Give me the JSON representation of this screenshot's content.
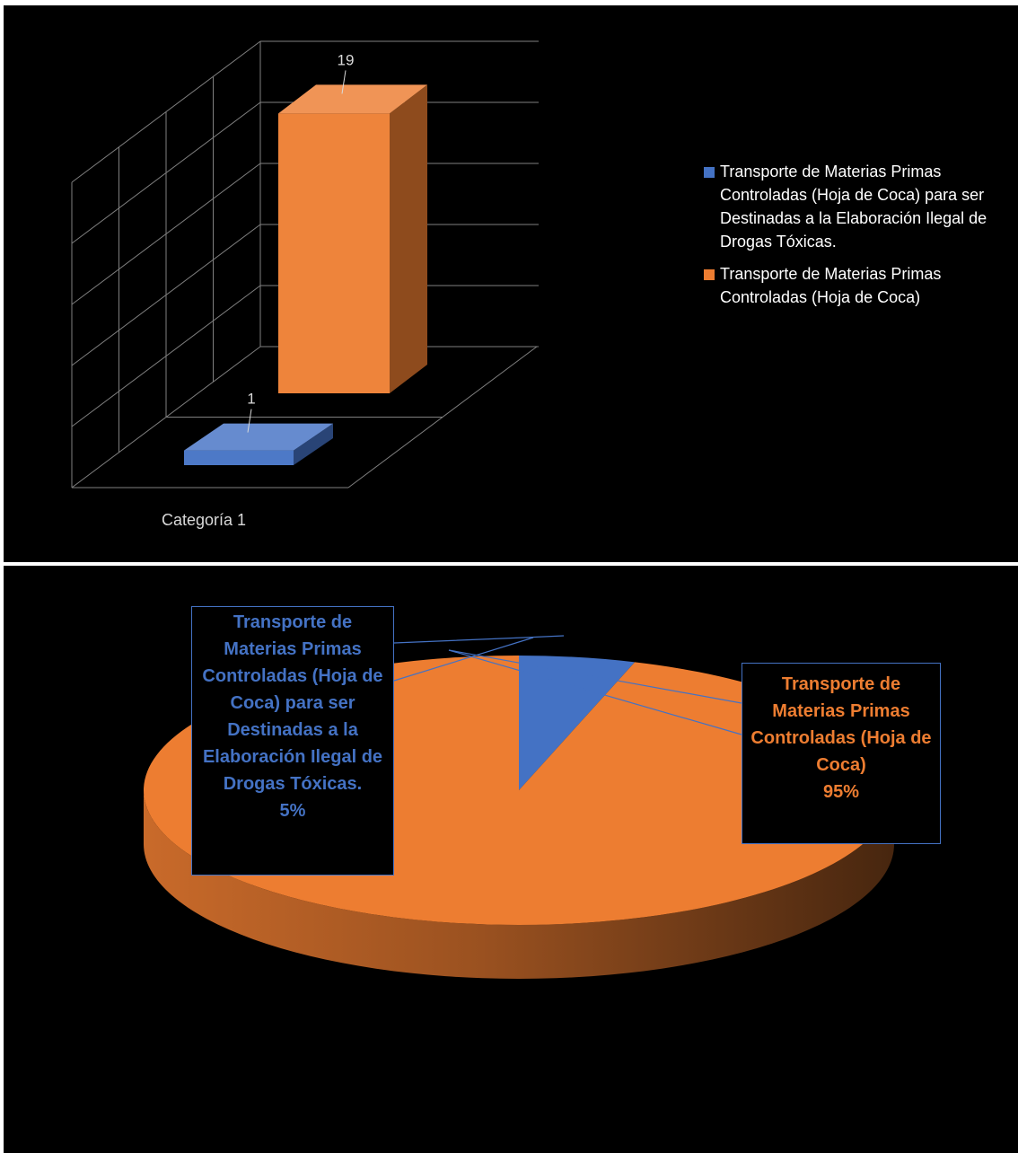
{
  "top_strip": {
    "text": ""
  },
  "colors": {
    "series_a": "#4472c4",
    "series_b": "#ed7d31",
    "background": "#000000",
    "gridline": "#7f7f7f"
  },
  "bar_chart": {
    "category_label": "Categoría 1",
    "legend": [
      {
        "label": "Transporte de Materias Primas Controladas (Hoja de Coca) para ser Destinadas a la Elaboración Ilegal de Drogas Tóxicas.",
        "color": "#4472c4"
      },
      {
        "label": "Transporte de Materias Primas Controladas (Hoja de Coca)",
        "color": "#ed7d31"
      }
    ]
  },
  "pie_chart": {
    "callouts": [
      {
        "name": "Transporte de Materias Primas Controladas (Hoja de Coca) para ser Destinadas a la Elaboración Ilegal de Drogas Tóxicas.",
        "percent": "5%"
      },
      {
        "name": "Transporte de Materias Primas Controladas (Hoja de Coca)",
        "percent": "95%"
      }
    ]
  },
  "chart_data": [
    {
      "type": "bar",
      "style": "3d-column",
      "categories": [
        "Categoría 1"
      ],
      "series": [
        {
          "name": "Transporte de Materias Primas Controladas (Hoja de Coca) para ser Destinadas a la Elaboración Ilegal de Drogas Tóxicas.",
          "values": [
            1
          ],
          "color": "#4472c4"
        },
        {
          "name": "Transporte de Materias Primas Controladas (Hoja de Coca)",
          "values": [
            19
          ],
          "color": "#ed7d31"
        }
      ],
      "data_labels": [
        "1",
        "19"
      ],
      "ylim": [
        0,
        20
      ],
      "grid": true,
      "legend_position": "right"
    },
    {
      "type": "pie",
      "style": "3d",
      "labels": [
        "Transporte de Materias Primas Controladas (Hoja de Coca) para ser Destinadas a la Elaboración Ilegal de Drogas Tóxicas.",
        "Transporte de Materias Primas Controladas (Hoja de Coca)"
      ],
      "values": [
        5,
        95
      ],
      "colors": [
        "#4472c4",
        "#ed7d31"
      ]
    }
  ]
}
